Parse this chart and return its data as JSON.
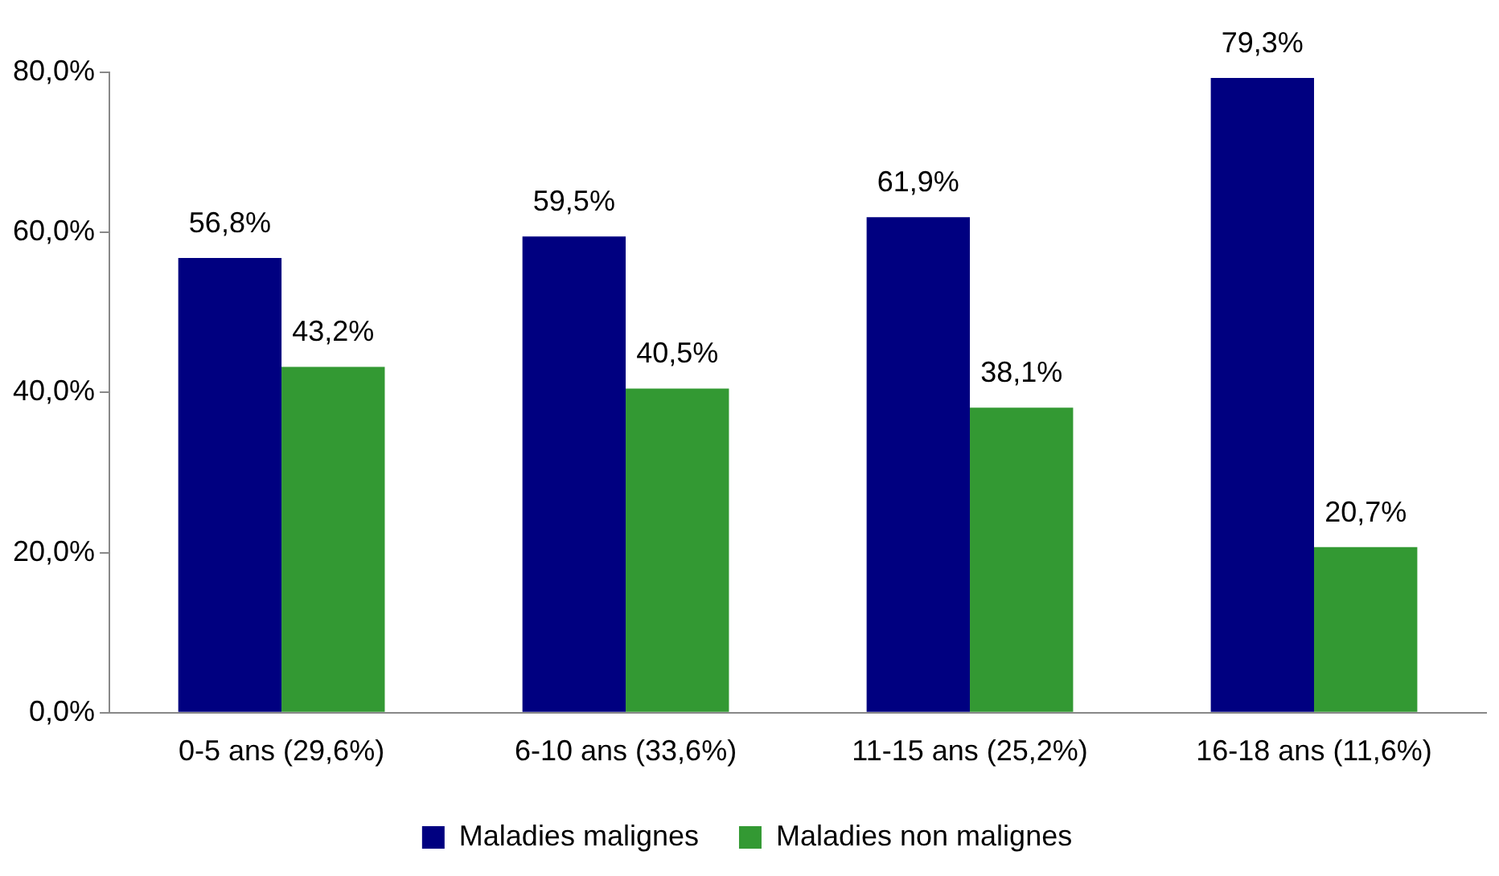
{
  "chart_data": {
    "type": "bar",
    "categories": [
      "0-5 ans (29,6%)",
      "6-10 ans (33,6%)",
      "11-15 ans (25,2%)",
      "16-18 ans (11,6%)"
    ],
    "series": [
      {
        "name": "Maladies malignes",
        "color": "#000080",
        "values": [
          56.8,
          59.5,
          61.9,
          79.3
        ],
        "value_labels": [
          "56,8%",
          "59,5%",
          "61,9%",
          "79,3%"
        ]
      },
      {
        "name": "Maladies non malignes",
        "color": "#339933",
        "values": [
          43.2,
          40.5,
          38.1,
          20.7
        ],
        "value_labels": [
          "43,2%",
          "40,5%",
          "38,1%",
          "20,7%"
        ]
      }
    ],
    "ylim": [
      0,
      80
    ],
    "yticks": [
      {
        "value": 0,
        "label": "0,0%"
      },
      {
        "value": 20,
        "label": "20,0%"
      },
      {
        "value": 40,
        "label": "40,0%"
      },
      {
        "value": 60,
        "label": "60,0%"
      },
      {
        "value": 80,
        "label": "80,0%"
      }
    ],
    "grid": false,
    "legend": "bottom"
  }
}
